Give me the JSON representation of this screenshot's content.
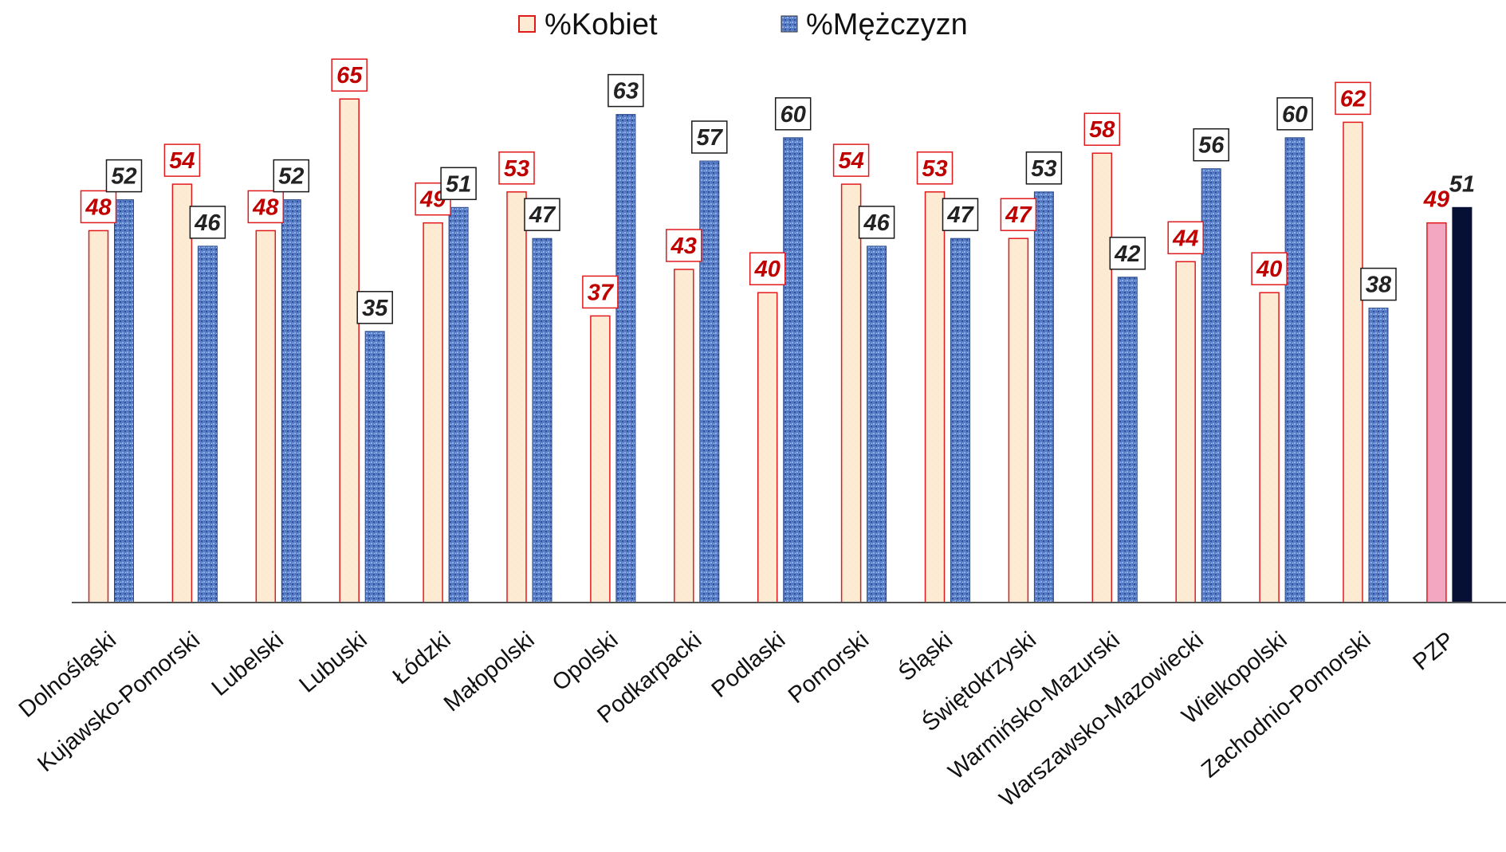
{
  "chart_data": {
    "type": "bar",
    "categories": [
      "Dolnośląski",
      "Kujawsko-Pomorski",
      "Lubelski",
      "Lubuski",
      "Łódzki",
      "Małopolski",
      "Opolski",
      "Podkarpacki",
      "Podlaski",
      "Pomorski",
      "Śląski",
      "Świętokrzyski",
      "Warmińsko-Mazurski",
      "Warszawsko-Mazowiecki",
      "Wielkopolski",
      "Zachodnio-Pomorski",
      "PZP"
    ],
    "series": [
      {
        "name": "%Kobiet",
        "values": [
          48,
          54,
          48,
          65,
          49,
          53,
          37,
          43,
          40,
          54,
          53,
          47,
          58,
          44,
          40,
          62,
          49
        ]
      },
      {
        "name": "%Mężczyzn",
        "values": [
          52,
          46,
          52,
          35,
          51,
          47,
          63,
          57,
          60,
          46,
          47,
          53,
          42,
          56,
          60,
          38,
          51
        ]
      }
    ],
    "ylim": [
      0,
      78
    ],
    "legend_position": "top-center",
    "grid": false,
    "colors": {
      "kobiet_fill": "#fdebd3",
      "kobiet_border": "#e31a1c",
      "kobiet_label": "#c00000",
      "mezczyzn_fill": "#5a7fc6",
      "mezczyzn_label": "#222222",
      "pzp_kobiet_fill": "#f4a7c0",
      "pzp_mezczyzn_fill": "#061035"
    }
  }
}
